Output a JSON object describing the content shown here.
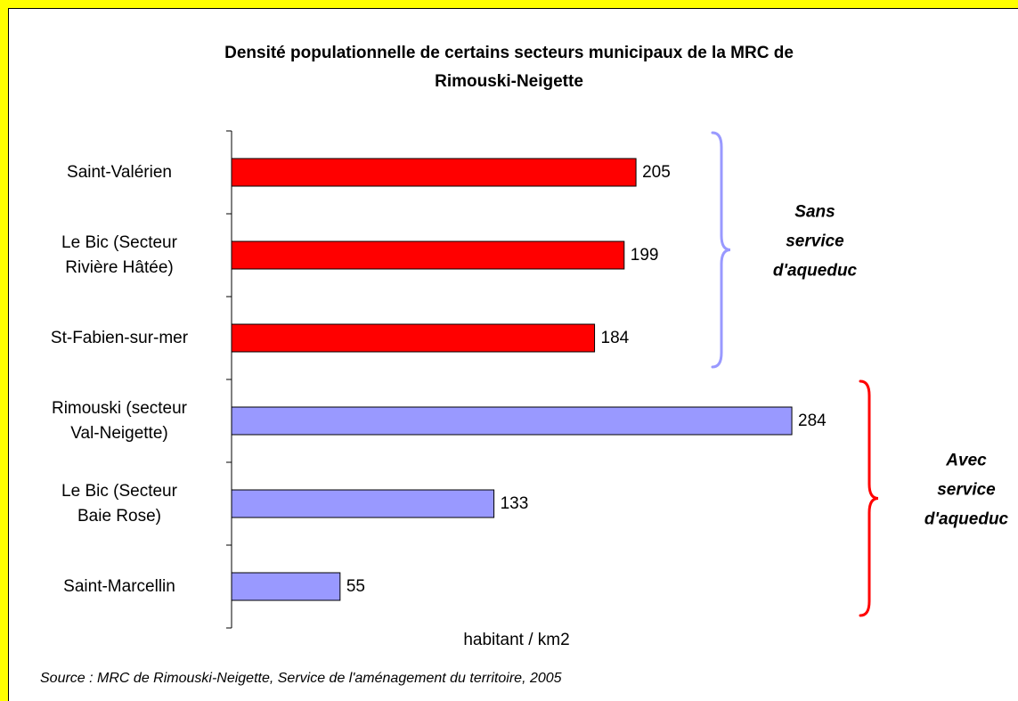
{
  "chart_data": {
    "type": "bar",
    "orientation": "horizontal",
    "title": "Densité populationnelle de certains secteurs municipaux de la MRC de\nRimouski-Neigette",
    "categories": [
      "Saint-Valérien",
      "Le Bic (Secteur\nRivière Hâtée)",
      "St-Fabien-sur-mer",
      "Rimouski (secteur\nVal-Neigette)",
      "Le Bic (Secteur\nBaie Rose)",
      "Saint-Marcellin"
    ],
    "values": [
      205,
      199,
      184,
      284,
      133,
      55
    ],
    "colors": [
      "#ff0000",
      "#ff0000",
      "#ff0000",
      "#9999ff",
      "#9999ff",
      "#9999ff"
    ],
    "xlim": [
      0,
      300
    ],
    "xlabel": "habitant / km2",
    "annotations": [
      {
        "text": "Sans\nservice\nd'aqueduc",
        "color": "#9999ff"
      },
      {
        "text": "Avec\nservice\nd'aqueduc",
        "color": "#ff0000"
      }
    ],
    "source": "Source : MRC de Rimouski-Neigette, Service de l'aménagement du territoire, 2005",
    "grid": false
  }
}
